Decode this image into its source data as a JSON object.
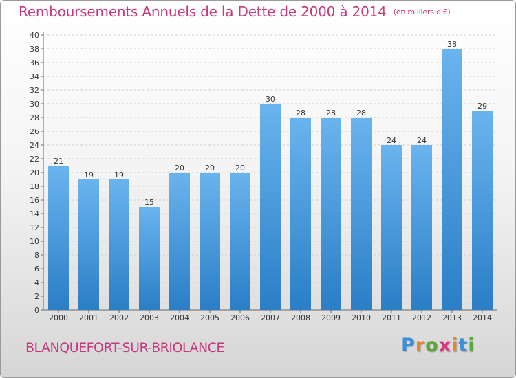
{
  "header": {
    "title": "Remboursements Annuels de la Dette de 2000 à 2014",
    "unit": "(en milliers d'€)"
  },
  "footer": {
    "city": "BLANQUEFORT-SUR-BRIOLANCE",
    "logo_letters": [
      "P",
      "r",
      "o",
      "x",
      "i",
      "t",
      "i"
    ],
    "logo_colors": [
      "#3b8fd9",
      "#e8862a",
      "#5aa83a",
      "#d83a7c",
      "#e8862a",
      "#3b8fd9",
      "#5aa83a"
    ]
  },
  "colors": {
    "bar_top": "#6ab4ee",
    "bar_bottom": "#2a7ec6",
    "title": "#c53a7b"
  },
  "chart_data": {
    "type": "bar",
    "title": "Remboursements Annuels de la Dette de 2000 à 2014",
    "xlabel": "",
    "ylabel": "",
    "ylim": [
      0,
      40
    ],
    "yticks": [
      "0",
      "2",
      "4",
      "6",
      "8",
      "10",
      "12",
      "14",
      "16",
      "18",
      "20",
      "22",
      "24",
      "26",
      "28",
      "30",
      "32",
      "34",
      "36",
      "38",
      "40"
    ],
    "grid": true,
    "categories": [
      "2000",
      "2001",
      "2002",
      "2003",
      "2004",
      "2005",
      "2006",
      "2007",
      "2008",
      "2009",
      "2010",
      "2011",
      "2012",
      "2013",
      "2014"
    ],
    "values": [
      21,
      19,
      19,
      15,
      20,
      20,
      20,
      30,
      28,
      28,
      28,
      24,
      24,
      38,
      29
    ]
  }
}
